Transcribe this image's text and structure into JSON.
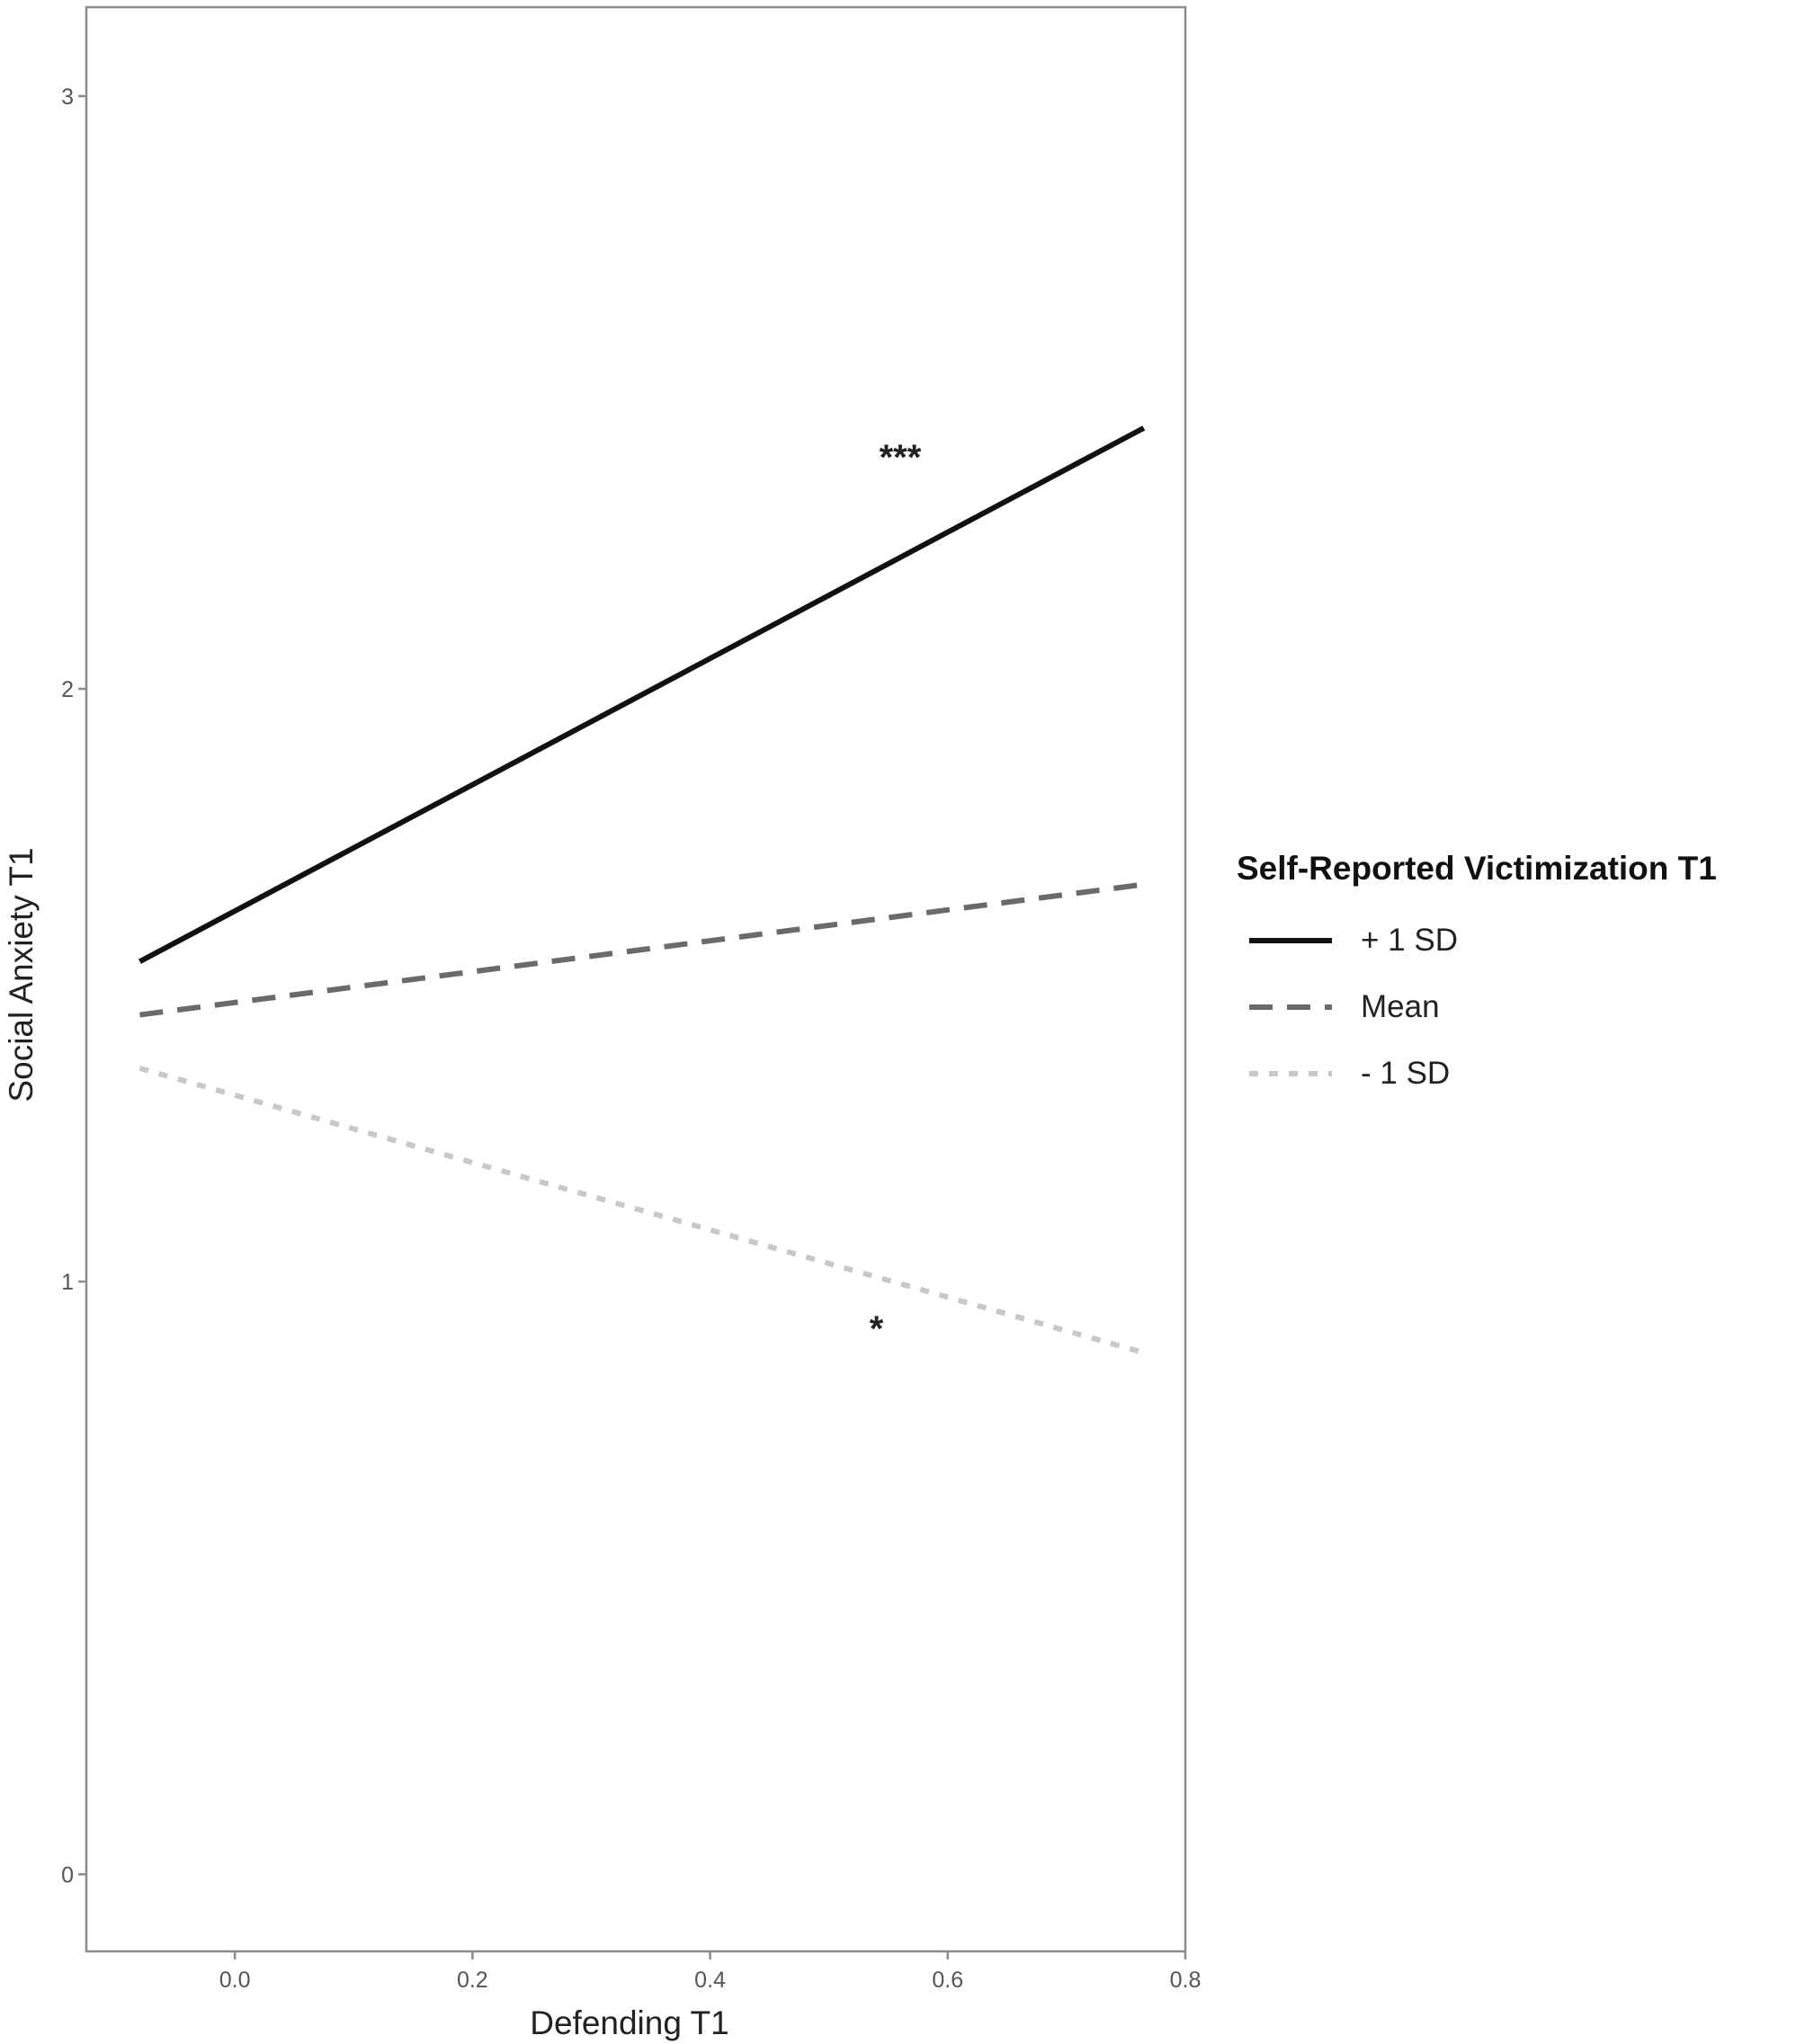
{
  "chart_data": {
    "type": "line",
    "title": "",
    "xlabel": "Defending T1",
    "ylabel": "Social Anxiety T1",
    "xlim": [
      -0.125,
      0.8
    ],
    "ylim": [
      -0.13,
      3.15
    ],
    "x_ticks": [
      0.0,
      0.2,
      0.4,
      0.6,
      0.8
    ],
    "x_tick_labels": [
      "0.0",
      "0.2",
      "0.4",
      "0.6",
      "0.8"
    ],
    "y_ticks": [
      0,
      1,
      2,
      3
    ],
    "y_tick_labels": [
      "0",
      "1",
      "2",
      "3"
    ],
    "grid": false,
    "legend": {
      "title": "Self-Reported Victimization T1",
      "placement": "right"
    },
    "series": [
      {
        "name": "+ 1 SD",
        "x": [
          -0.08,
          0.765
        ],
        "y": [
          1.54,
          2.44
        ],
        "color": "#111111",
        "dash": "solid"
      },
      {
        "name": "Mean",
        "x": [
          -0.08,
          0.765
        ],
        "y": [
          1.45,
          1.67
        ],
        "color": "#6a6a6a",
        "dash": "dashed"
      },
      {
        "name": "- 1 SD",
        "x": [
          -0.08,
          0.765
        ],
        "y": [
          1.36,
          0.88
        ],
        "color": "#c8c8c8",
        "dash": "dotted"
      }
    ],
    "annotations": [
      {
        "text": "***",
        "x": 0.56,
        "y": 2.37
      },
      {
        "text": "*",
        "x": 0.54,
        "y": 0.9
      }
    ]
  }
}
